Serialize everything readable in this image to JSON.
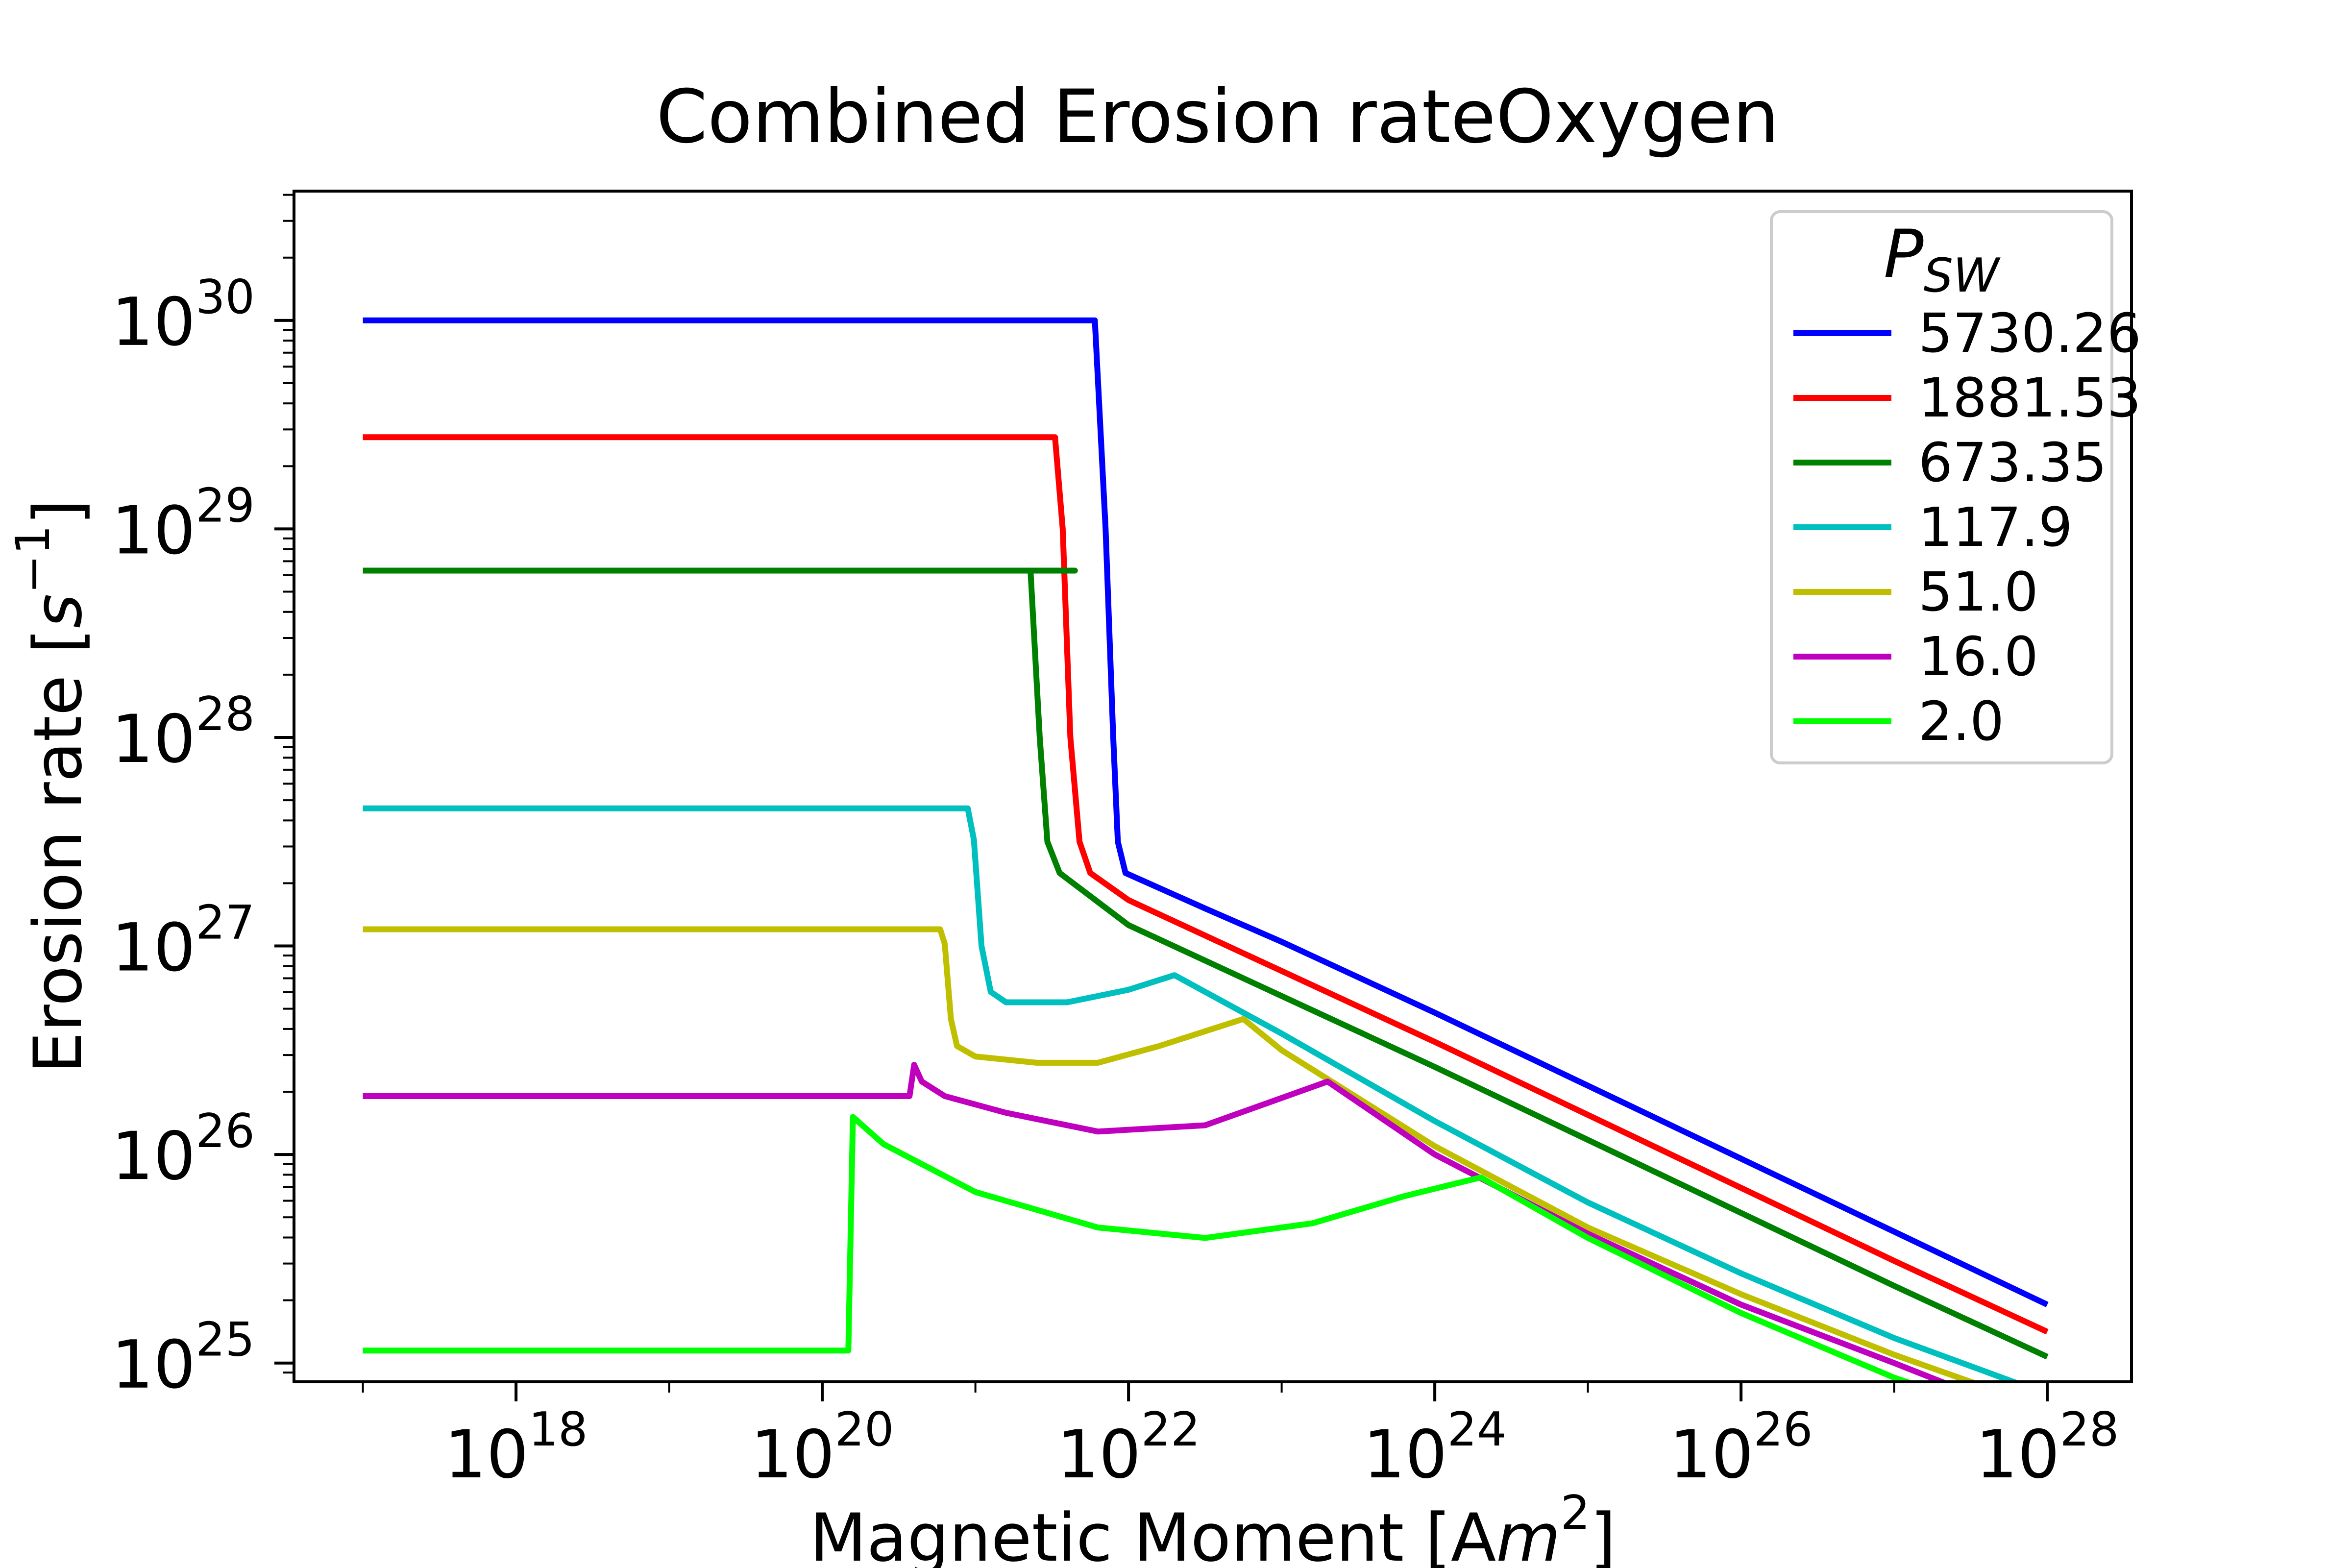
{
  "chart_data": {
    "type": "line",
    "title": "Combined Erosion rateOxygen",
    "xlabel": "Magnetic Moment [Am²]",
    "ylabel": "Erosion rate [s⁻¹]",
    "xlabel_parts": {
      "base": "Magnetic Moment [A",
      "italic": "m",
      "sup": "2",
      "end": "]"
    },
    "ylabel_parts": {
      "base": "Erosion rate [",
      "italic": "s",
      "sup": "−1",
      "end": "]"
    },
    "xscale": "log",
    "yscale": "log",
    "xlim_log10": [
      16.55,
      28.55
    ],
    "ylim_log10": [
      24.91,
      30.62
    ],
    "grid": false,
    "x_ticks": [
      {
        "base": "10",
        "exp": "18",
        "log10": 18
      },
      {
        "base": "10",
        "exp": "20",
        "log10": 20
      },
      {
        "base": "10",
        "exp": "22",
        "log10": 22
      },
      {
        "base": "10",
        "exp": "24",
        "log10": 24
      },
      {
        "base": "10",
        "exp": "26",
        "log10": 26
      },
      {
        "base": "10",
        "exp": "28",
        "log10": 28
      }
    ],
    "y_ticks": [
      {
        "base": "10",
        "exp": "25",
        "log10": 25
      },
      {
        "base": "10",
        "exp": "26",
        "log10": 26
      },
      {
        "base": "10",
        "exp": "27",
        "log10": 27
      },
      {
        "base": "10",
        "exp": "28",
        "log10": 28
      },
      {
        "base": "10",
        "exp": "29",
        "log10": 29
      },
      {
        "base": "10",
        "exp": "30",
        "log10": 30
      }
    ],
    "legend": {
      "title_base": "P",
      "title_sub": "SW",
      "placement": "upper right"
    },
    "series_note": "points are [log10 magnetic moment (Am^2), log10 erosion rate (s^-1)]",
    "series": [
      {
        "name": "5730.26",
        "color": "#0000ff",
        "points": [
          [
            17.0,
            30.0
          ],
          [
            21.78,
            30.0
          ],
          [
            21.85,
            29.0
          ],
          [
            21.9,
            28.0
          ],
          [
            21.93,
            27.5
          ],
          [
            21.98,
            27.35
          ],
          [
            22.5,
            27.18
          ],
          [
            23.0,
            27.02
          ],
          [
            24.0,
            26.68
          ],
          [
            25.0,
            26.33
          ],
          [
            26.0,
            25.98
          ],
          [
            27.0,
            25.63
          ],
          [
            28.0,
            25.28
          ]
        ]
      },
      {
        "name": "1881.53",
        "color": "#ff0000",
        "points": [
          [
            17.0,
            29.44
          ],
          [
            21.52,
            29.44
          ],
          [
            21.57,
            29.0
          ],
          [
            21.62,
            28.0
          ],
          [
            21.68,
            27.5
          ],
          [
            21.75,
            27.35
          ],
          [
            22.0,
            27.22
          ],
          [
            23.0,
            26.88
          ],
          [
            24.0,
            26.54
          ],
          [
            25.0,
            26.19
          ],
          [
            26.0,
            25.84
          ],
          [
            27.0,
            25.49
          ],
          [
            28.0,
            25.15
          ]
        ]
      },
      {
        "name": "673.35",
        "color": "#008000",
        "points": [
          [
            17.0,
            28.8
          ],
          [
            21.65,
            28.8
          ],
          [
            21.36,
            28.8
          ],
          [
            21.42,
            28.0
          ],
          [
            21.47,
            27.5
          ],
          [
            21.55,
            27.35
          ],
          [
            22.0,
            27.1
          ],
          [
            23.0,
            26.76
          ],
          [
            24.0,
            26.42
          ],
          [
            25.0,
            26.07
          ],
          [
            26.0,
            25.72
          ],
          [
            27.0,
            25.37
          ],
          [
            28.0,
            25.03
          ]
        ]
      },
      {
        "name": "117.9",
        "color": "#00bfbf",
        "points": [
          [
            17.0,
            27.66
          ],
          [
            20.95,
            27.66
          ],
          [
            20.99,
            27.51
          ],
          [
            21.04,
            27.0
          ],
          [
            21.1,
            26.78
          ],
          [
            21.2,
            26.73
          ],
          [
            21.6,
            26.73
          ],
          [
            22.0,
            26.79
          ],
          [
            22.3,
            26.86
          ],
          [
            23.0,
            26.58
          ],
          [
            24.0,
            26.16
          ],
          [
            25.0,
            25.77
          ],
          [
            26.0,
            25.43
          ],
          [
            27.0,
            25.12
          ],
          [
            28.0,
            24.85
          ]
        ]
      },
      {
        "name": "51.0",
        "color": "#bfbf00",
        "points": [
          [
            17.0,
            27.08
          ],
          [
            20.77,
            27.08
          ],
          [
            20.8,
            27.01
          ],
          [
            20.84,
            26.65
          ],
          [
            20.88,
            26.52
          ],
          [
            21.0,
            26.47
          ],
          [
            21.4,
            26.44
          ],
          [
            21.8,
            26.44
          ],
          [
            22.2,
            26.52
          ],
          [
            22.75,
            26.65
          ],
          [
            23.0,
            26.5
          ],
          [
            24.0,
            26.04
          ],
          [
            25.0,
            25.65
          ],
          [
            26.0,
            25.33
          ],
          [
            27.0,
            25.04
          ],
          [
            28.0,
            24.78
          ]
        ]
      },
      {
        "name": "16.0",
        "color": "#bf00bf",
        "points": [
          [
            17.0,
            26.28
          ],
          [
            20.57,
            26.28
          ],
          [
            20.6,
            26.43
          ],
          [
            20.65,
            26.35
          ],
          [
            20.8,
            26.28
          ],
          [
            21.2,
            26.2
          ],
          [
            21.8,
            26.11
          ],
          [
            22.5,
            26.14
          ],
          [
            23.3,
            26.35
          ],
          [
            24.0,
            26.0
          ],
          [
            25.0,
            25.62
          ],
          [
            26.0,
            25.28
          ],
          [
            27.0,
            25.0
          ],
          [
            28.0,
            24.71
          ]
        ]
      },
      {
        "name": "2.0",
        "color": "#00ff00",
        "points": [
          [
            17.0,
            25.06
          ],
          [
            20.17,
            25.06
          ],
          [
            20.2,
            26.18
          ],
          [
            20.4,
            26.05
          ],
          [
            21.0,
            25.82
          ],
          [
            21.8,
            25.65
          ],
          [
            22.5,
            25.6
          ],
          [
            23.2,
            25.67
          ],
          [
            23.8,
            25.8
          ],
          [
            24.3,
            25.89
          ],
          [
            25.0,
            25.6
          ],
          [
            26.0,
            25.24
          ],
          [
            27.0,
            24.93
          ],
          [
            28.0,
            24.68
          ]
        ]
      }
    ]
  }
}
